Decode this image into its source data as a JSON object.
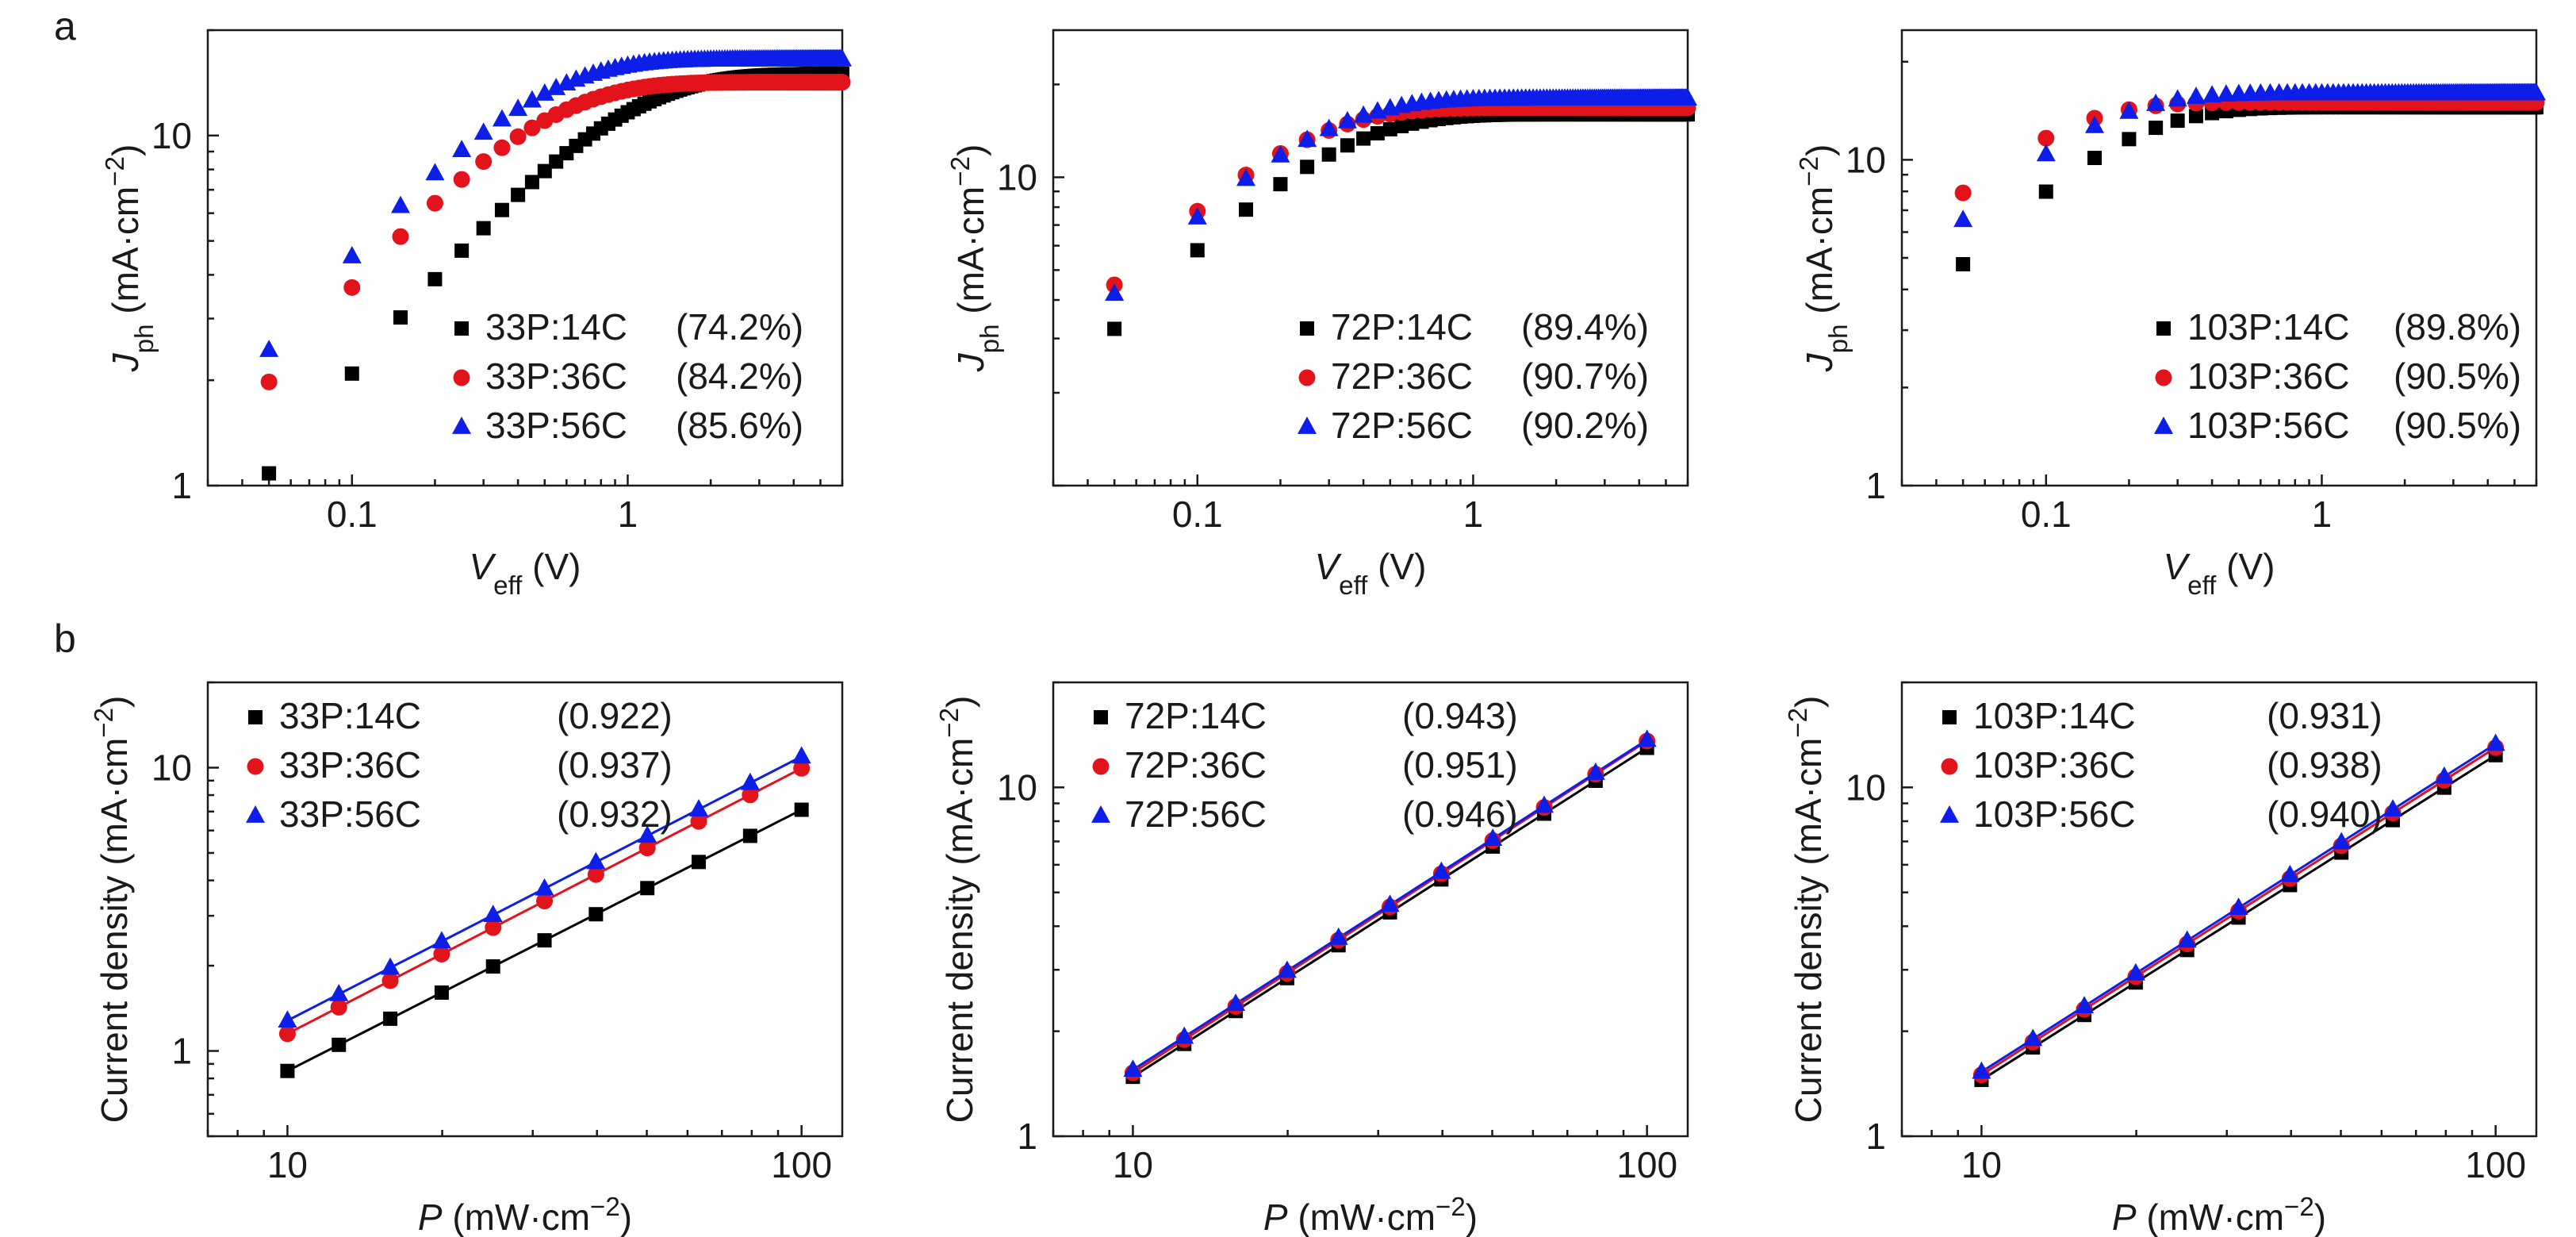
{
  "panel_labels": [
    "a",
    "b"
  ],
  "chart_data": [
    {
      "id": "a1",
      "type": "scatter",
      "xscale": "log",
      "yscale": "log",
      "xlim": [
        0.03,
        6
      ],
      "ylim": [
        1,
        20
      ],
      "xticks": [
        {
          "v": 0.1,
          "label": "0.1"
        },
        {
          "v": 1,
          "label": "1"
        }
      ],
      "yticks": [
        {
          "v": 1,
          "label": "1"
        },
        {
          "v": 10,
          "label": "10"
        }
      ],
      "ylabel": {
        "main": "J",
        "sub": "ph",
        "unit": " (mA·cm",
        "sup": "−2",
        "close": ")"
      },
      "xlabel": {
        "main": "V",
        "sub": "eff",
        "unit": " (V)",
        "sup": "",
        "close": ""
      },
      "legend": {
        "position": "center-right",
        "pct": true
      },
      "series": [
        {
          "name": "33P:14C",
          "value": "(74.2%)",
          "color": "#000000",
          "marker": "square",
          "model": {
            "kind": "ph",
            "jsat": 15.0,
            "a": 1.5
          }
        },
        {
          "name": "33P:36C",
          "value": "(84.2%)",
          "color": "#e3131b",
          "marker": "circle",
          "model": {
            "kind": "ph",
            "jsat": 14.2,
            "a": 3.0
          }
        },
        {
          "name": "33P:56C",
          "value": "(85.6%)",
          "color": "#0d1ee8",
          "marker": "triangle",
          "model": {
            "kind": "ph",
            "jsat": 16.5,
            "a": 3.2
          }
        }
      ]
    },
    {
      "id": "a2",
      "type": "scatter",
      "xscale": "log",
      "yscale": "log",
      "xlim": [
        0.03,
        6
      ],
      "ylim": [
        1,
        30
      ],
      "xticks": [
        {
          "v": 0.1,
          "label": "0.1"
        },
        {
          "v": 1,
          "label": "1"
        }
      ],
      "yticks": [
        {
          "v": 10,
          "label": "10"
        }
      ],
      "ylabel": {
        "main": "J",
        "sub": "ph",
        "unit": " (mA·cm",
        "sup": "−2",
        "close": ")"
      },
      "xlabel": {
        "main": "V",
        "sub": "eff",
        "unit": " (V)",
        "sup": "",
        "close": ""
      },
      "legend": {
        "position": "center-right",
        "pct": true
      },
      "series": [
        {
          "name": "72P:14C",
          "value": "(89.4%)",
          "color": "#000000",
          "marker": "square",
          "model": {
            "kind": "ph",
            "jsat": 16.0,
            "a": 4.5
          }
        },
        {
          "name": "72P:36C",
          "value": "(90.7%)",
          "color": "#e3131b",
          "marker": "circle",
          "model": {
            "kind": "ph",
            "jsat": 16.8,
            "a": 6.2
          }
        },
        {
          "name": "72P:56C",
          "value": "(90.2%)",
          "color": "#0d1ee8",
          "marker": "triangle",
          "model": {
            "kind": "ph",
            "jsat": 18.0,
            "a": 5.3
          }
        }
      ]
    },
    {
      "id": "a3",
      "type": "scatter",
      "xscale": "log",
      "yscale": "log",
      "xlim": [
        0.03,
        6
      ],
      "ylim": [
        1,
        25
      ],
      "xticks": [
        {
          "v": 0.1,
          "label": "0.1"
        },
        {
          "v": 1,
          "label": "1"
        }
      ],
      "yticks": [
        {
          "v": 1,
          "label": "1"
        },
        {
          "v": 10,
          "label": "10"
        }
      ],
      "ylabel": {
        "main": "J",
        "sub": "ph",
        "unit": " (mA·cm",
        "sup": "−2",
        "close": ")"
      },
      "xlabel": {
        "main": "V",
        "sub": "eff",
        "unit": " (V)",
        "sup": "",
        "close": ""
      },
      "legend": {
        "position": "center-right",
        "pct": true
      },
      "series": [
        {
          "name": "103P:14C",
          "value": "(89.8%)",
          "color": "#000000",
          "marker": "square",
          "model": {
            "kind": "ph",
            "jsat": 14.5,
            "a": 8.0
          }
        },
        {
          "name": "103P:36C",
          "value": "(90.5%)",
          "color": "#e3131b",
          "marker": "circle",
          "model": {
            "kind": "ph",
            "jsat": 15.0,
            "a": 15.0
          }
        },
        {
          "name": "103P:56C",
          "value": "(90.5%)",
          "color": "#0d1ee8",
          "marker": "triangle",
          "model": {
            "kind": "ph",
            "jsat": 16.0,
            "a": 10.5
          }
        }
      ]
    },
    {
      "id": "b1",
      "type": "scatter",
      "xscale": "log",
      "yscale": "log",
      "xlim": [
        7,
        120
      ],
      "ylim": [
        0.5,
        20
      ],
      "xticks": [
        {
          "v": 10,
          "label": "10"
        },
        {
          "v": 100,
          "label": "100"
        }
      ],
      "yticks": [
        {
          "v": 1,
          "label": "1"
        },
        {
          "v": 10,
          "label": "10"
        }
      ],
      "ylabel": {
        "main": "Current density",
        "sub": "",
        "unit": " (mA·cm",
        "sup": "−2",
        "close": ")"
      },
      "xlabel": {
        "main": "P",
        "sub": "",
        "unit": " (mW·cm",
        "sup": "−2",
        "close": ")"
      },
      "legend": {
        "position": "top-left",
        "pct": false
      },
      "series": [
        {
          "name": "33P:14C",
          "value": "(0.922)",
          "color": "#000000",
          "marker": "square",
          "model": {
            "kind": "pow",
            "c": 0.85,
            "alpha": 0.922
          }
        },
        {
          "name": "33P:36C",
          "value": "(0.937)",
          "color": "#e3131b",
          "marker": "circle",
          "model": {
            "kind": "pow",
            "c": 1.15,
            "alpha": 0.937
          }
        },
        {
          "name": "33P:56C",
          "value": "(0.932)",
          "color": "#0d1ee8",
          "marker": "triangle",
          "model": {
            "kind": "pow",
            "c": 1.28,
            "alpha": 0.932
          }
        }
      ]
    },
    {
      "id": "b2",
      "type": "scatter",
      "xscale": "log",
      "yscale": "log",
      "xlim": [
        7,
        120
      ],
      "ylim": [
        1,
        20
      ],
      "xticks": [
        {
          "v": 10,
          "label": "10"
        },
        {
          "v": 100,
          "label": "100"
        }
      ],
      "yticks": [
        {
          "v": 1,
          "label": "1"
        },
        {
          "v": 10,
          "label": "10"
        }
      ],
      "ylabel": {
        "main": "Current density",
        "sub": "",
        "unit": " (mA·cm",
        "sup": "−2",
        "close": ")"
      },
      "xlabel": {
        "main": "P",
        "sub": "",
        "unit": " (mW·cm",
        "sup": "−2",
        "close": ")"
      },
      "legend": {
        "position": "top-left",
        "pct": false
      },
      "series": [
        {
          "name": "72P:14C",
          "value": "(0.943)",
          "color": "#000000",
          "marker": "square",
          "model": {
            "kind": "pow",
            "c": 1.48,
            "alpha": 0.943
          }
        },
        {
          "name": "72P:36C",
          "value": "(0.951)",
          "color": "#e3131b",
          "marker": "circle",
          "model": {
            "kind": "pow",
            "c": 1.52,
            "alpha": 0.951
          }
        },
        {
          "name": "72P:56C",
          "value": "(0.946)",
          "color": "#0d1ee8",
          "marker": "triangle",
          "model": {
            "kind": "pow",
            "c": 1.55,
            "alpha": 0.946
          }
        }
      ]
    },
    {
      "id": "b3",
      "type": "scatter",
      "xscale": "log",
      "yscale": "log",
      "xlim": [
        7,
        120
      ],
      "ylim": [
        1,
        20
      ],
      "xticks": [
        {
          "v": 10,
          "label": "10"
        },
        {
          "v": 100,
          "label": "100"
        }
      ],
      "yticks": [
        {
          "v": 1,
          "label": "1"
        },
        {
          "v": 10,
          "label": "10"
        }
      ],
      "ylabel": {
        "main": "Current density",
        "sub": "",
        "unit": " (mA·cm",
        "sup": "−2",
        "close": ")"
      },
      "xlabel": {
        "main": "P",
        "sub": "",
        "unit": " (mW·cm",
        "sup": "−2",
        "close": ")"
      },
      "legend": {
        "position": "top-left",
        "pct": false
      },
      "series": [
        {
          "name": "103P:14C",
          "value": "(0.931)",
          "color": "#000000",
          "marker": "square",
          "model": {
            "kind": "pow",
            "c": 1.45,
            "alpha": 0.931
          }
        },
        {
          "name": "103P:36C",
          "value": "(0.938)",
          "color": "#e3131b",
          "marker": "circle",
          "model": {
            "kind": "pow",
            "c": 1.5,
            "alpha": 0.938
          }
        },
        {
          "name": "103P:56C",
          "value": "(0.940)",
          "color": "#0d1ee8",
          "marker": "triangle",
          "model": {
            "kind": "pow",
            "c": 1.53,
            "alpha": 0.94
          }
        }
      ]
    }
  ]
}
